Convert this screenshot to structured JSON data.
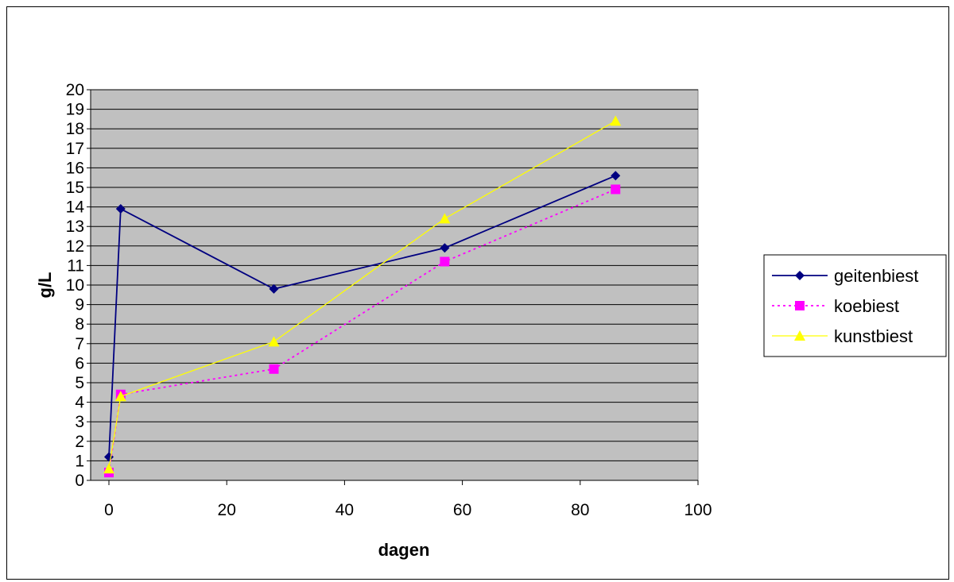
{
  "chart_data": {
    "type": "scatter",
    "title": "",
    "xlabel": "dagen",
    "ylabel": "g/L",
    "xlim": [
      0,
      100
    ],
    "ylim": [
      0,
      20
    ],
    "x_ticks": [
      0,
      20,
      40,
      60,
      80,
      100
    ],
    "y_ticks": [
      0,
      1,
      2,
      3,
      4,
      5,
      6,
      7,
      8,
      9,
      10,
      11,
      12,
      13,
      14,
      15,
      16,
      17,
      18,
      19,
      20
    ],
    "grid": "horizontal",
    "plot_background": "#c0c0c0",
    "legend_position": "right",
    "series": [
      {
        "name": "geitenbiest",
        "color": "#000080",
        "marker": "diamond",
        "line": "solid",
        "points": [
          [
            0,
            1.2
          ],
          [
            2,
            13.9
          ],
          [
            28,
            9.8
          ],
          [
            57,
            11.9
          ],
          [
            86,
            15.6
          ]
        ]
      },
      {
        "name": "koebiest",
        "color": "#ff00ff",
        "marker": "square",
        "line": "dotted",
        "points": [
          [
            0,
            0.4
          ],
          [
            2,
            4.4
          ],
          [
            28,
            5.7
          ],
          [
            57,
            11.2
          ],
          [
            86,
            14.9
          ]
        ]
      },
      {
        "name": "kunstbiest",
        "color": "#ffff00",
        "marker": "triangle",
        "line": "solid",
        "points": [
          [
            0,
            0.6
          ],
          [
            2,
            4.3
          ],
          [
            28,
            7.1
          ],
          [
            57,
            13.4
          ],
          [
            86,
            18.4
          ]
        ]
      }
    ]
  }
}
